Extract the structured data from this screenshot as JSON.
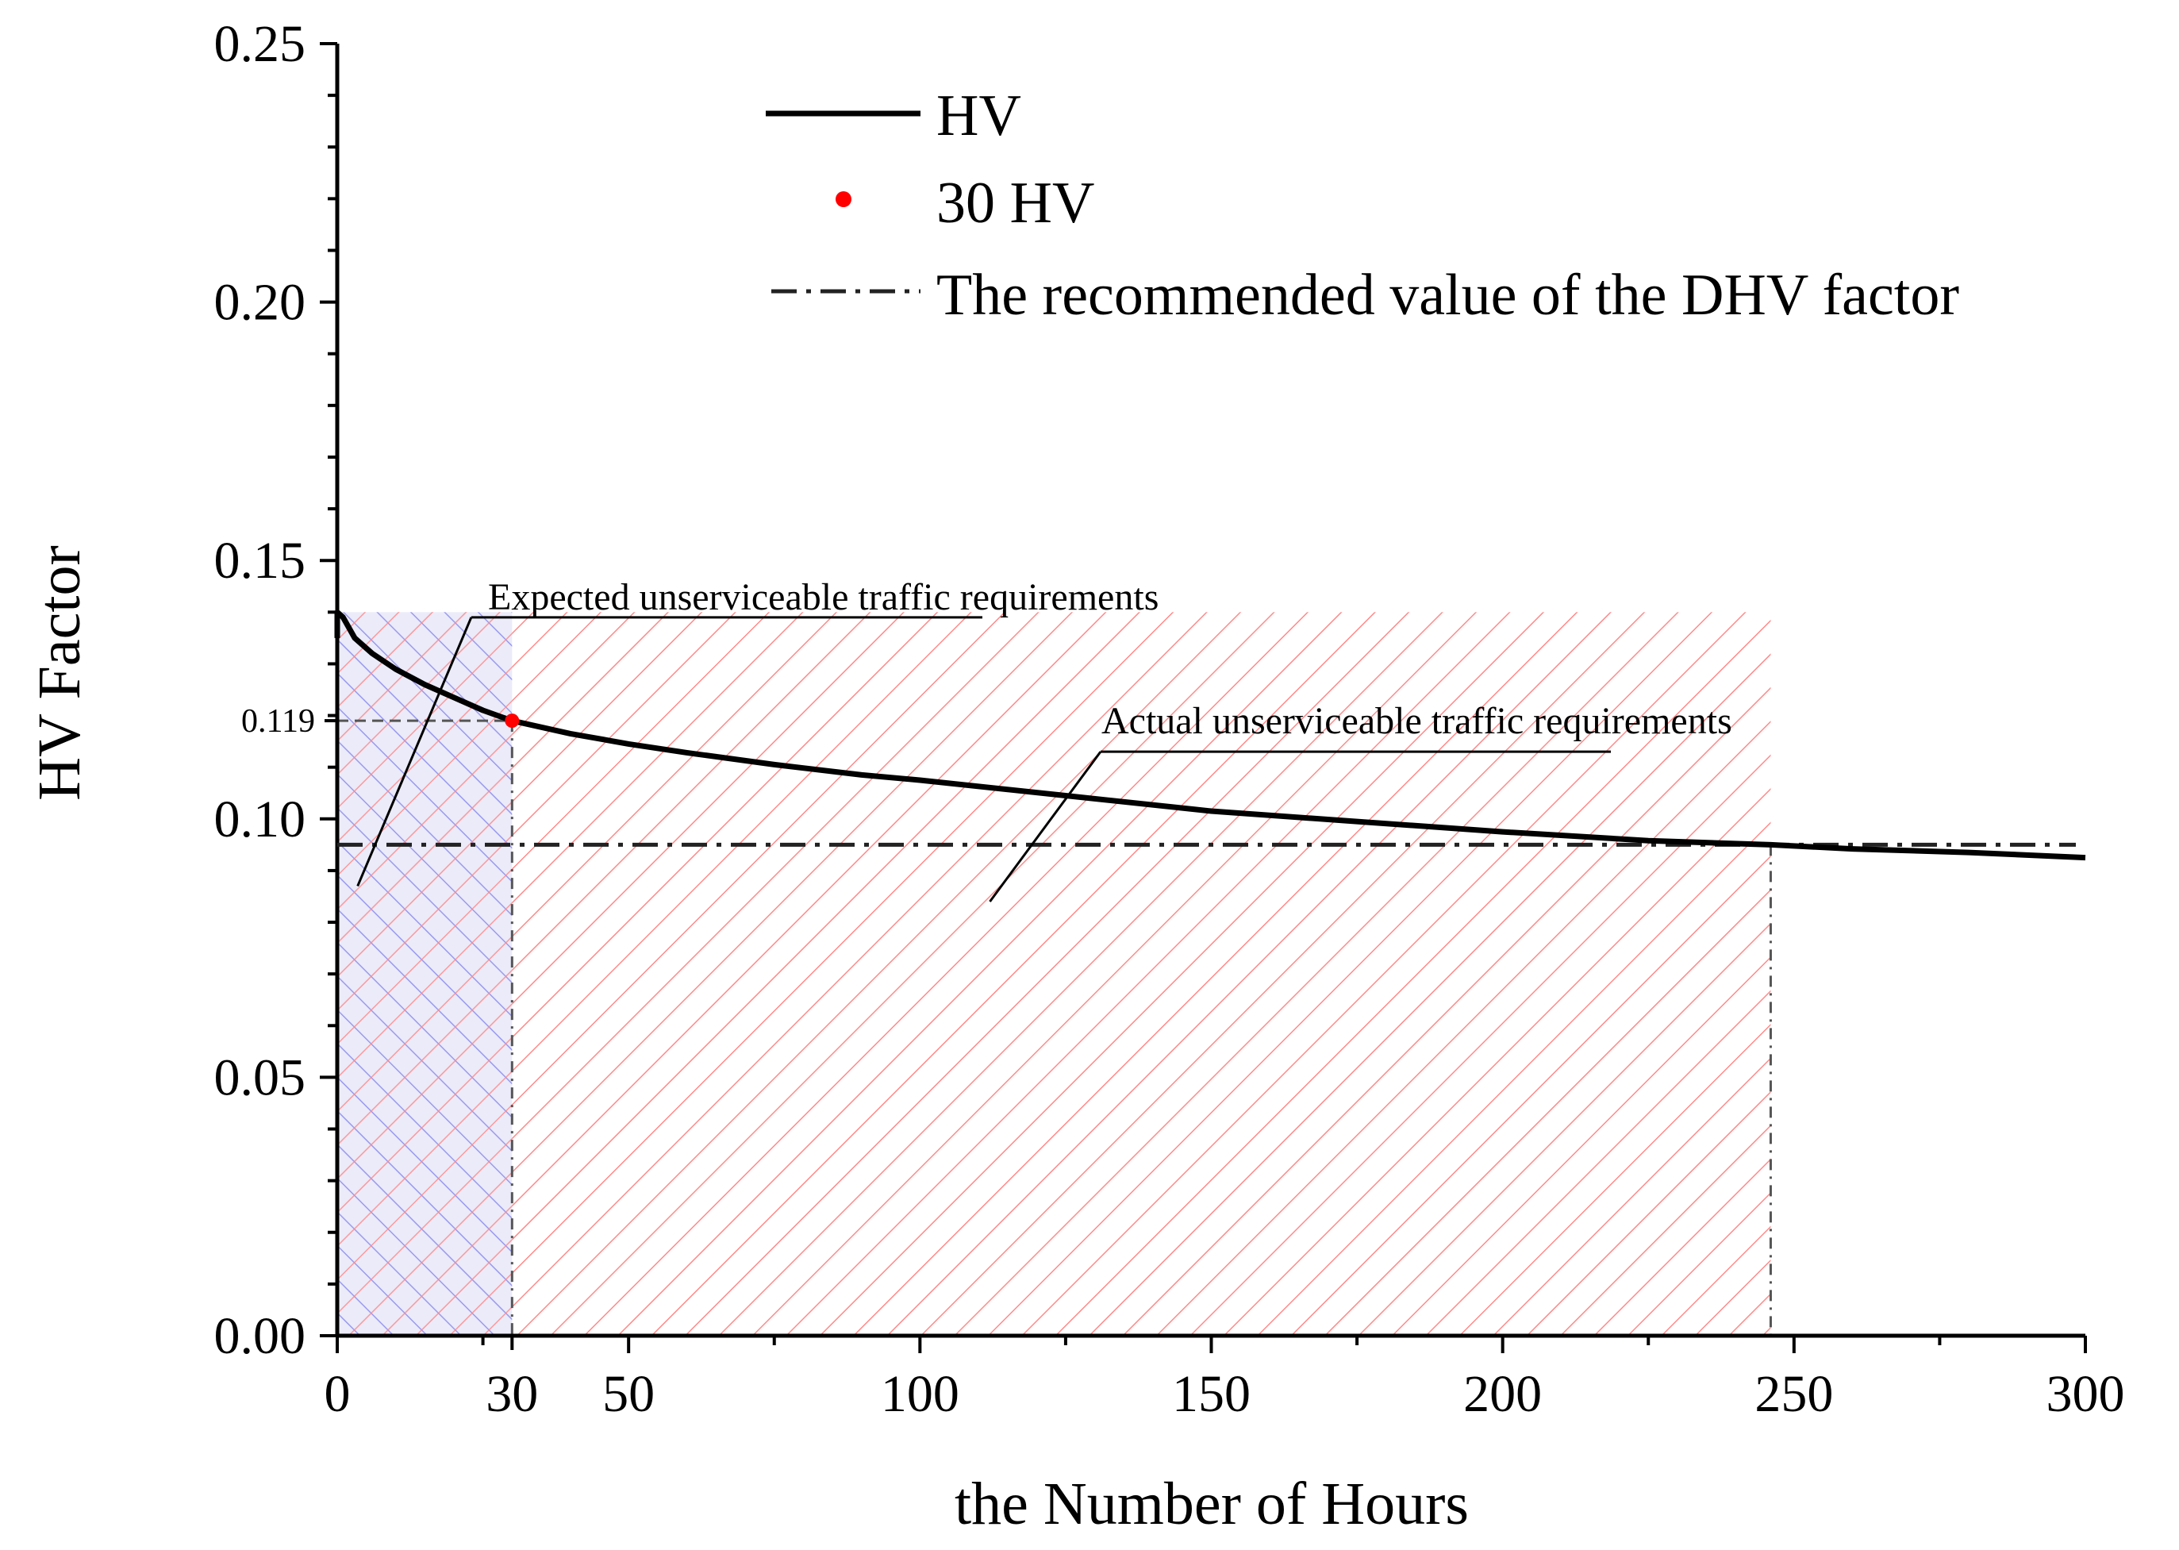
{
  "chart_data": {
    "type": "line",
    "title": "",
    "xlabel": "the Number of Hours",
    "ylabel": "HV Factor",
    "xlim": [
      0,
      300
    ],
    "ylim": [
      0,
      0.25
    ],
    "x_ticks": [
      0,
      30,
      50,
      100,
      150,
      200,
      250,
      300
    ],
    "x_tick_labels": [
      "0",
      "30",
      "50",
      "100",
      "150",
      "200",
      "250",
      "300"
    ],
    "y_ticks": [
      0.0,
      0.05,
      0.1,
      0.15,
      0.2,
      0.25
    ],
    "y_tick_labels": [
      "0.00",
      "0.05",
      "0.10",
      "0.15",
      "0.20",
      "0.25"
    ],
    "grid": false,
    "legend_position": "top-center",
    "series": [
      {
        "name": "HV",
        "style": "solid",
        "color": "#000000",
        "x": [
          0,
          1,
          3,
          6,
          10,
          15,
          20,
          25,
          30,
          40,
          50,
          60,
          75,
          90,
          100,
          125,
          150,
          175,
          200,
          225,
          246,
          260,
          280,
          300
        ],
        "y": [
          0.14,
          0.139,
          0.135,
          0.132,
          0.129,
          0.126,
          0.1235,
          0.121,
          0.119,
          0.1165,
          0.1145,
          0.1128,
          0.1105,
          0.1085,
          0.1075,
          0.1045,
          0.1015,
          0.0995,
          0.0975,
          0.0958,
          0.095,
          0.0942,
          0.0935,
          0.0925
        ]
      },
      {
        "name": "30 HV",
        "style": "point",
        "color": "#ff0000",
        "x": [
          30
        ],
        "y": [
          0.119
        ]
      },
      {
        "name": "The recommended value of the DHV factor",
        "style": "dashdot",
        "color": "#000000",
        "x": [
          0,
          300
        ],
        "y": [
          0.095,
          0.095
        ]
      }
    ],
    "regions": [
      {
        "name": "expected",
        "x_range": [
          0,
          30
        ],
        "y_range": [
          0,
          0.14
        ],
        "color": "#7777dd"
      },
      {
        "name": "actual",
        "x_range": [
          0,
          246
        ],
        "y_range": [
          0,
          0.14
        ],
        "color": "#ff8080"
      }
    ],
    "reference_lines": {
      "marker_x": 30,
      "marker_y": 0.119,
      "marker_label": "0.119",
      "crossing_x": 246
    },
    "annotations": [
      {
        "text": "Expected unserviceable traffic requirements",
        "leader_from": [
          3.5,
          0.087
        ],
        "leader_to": [
          23,
          0.139
        ]
      },
      {
        "text": "Actual unserviceable traffic requirements",
        "leader_from": [
          112,
          0.084
        ],
        "leader_to": [
          131,
          0.113
        ]
      }
    ]
  }
}
